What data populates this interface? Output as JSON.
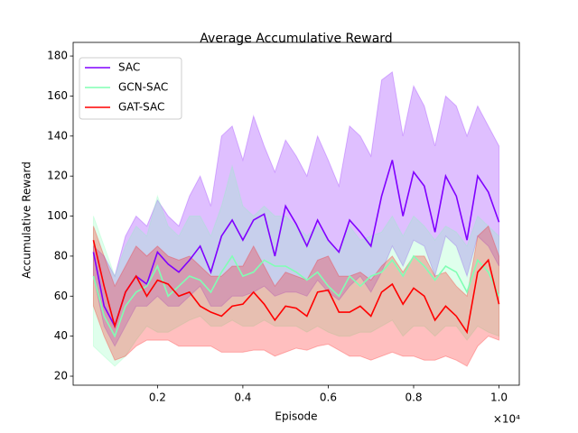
{
  "chart_data": {
    "type": "line",
    "title": "Average Accumulative Reward",
    "x_label": "Episode",
    "y_label": "Accumulative Reward",
    "x_offset": "×10⁴",
    "x": [
      0.05,
      0.075,
      0.1,
      0.125,
      0.15,
      0.175,
      0.2,
      0.225,
      0.25,
      0.275,
      0.3,
      0.325,
      0.35,
      0.375,
      0.4,
      0.425,
      0.45,
      0.475,
      0.5,
      0.525,
      0.55,
      0.575,
      0.6,
      0.625,
      0.65,
      0.675,
      0.7,
      0.725,
      0.75,
      0.775,
      0.8,
      0.825,
      0.85,
      0.875,
      0.9,
      0.925,
      0.95,
      0.975,
      1.0
    ],
    "series": [
      {
        "name": "SAC",
        "color": "#8000ff",
        "values": [
          82,
          55,
          45,
          62,
          70,
          66,
          82,
          76,
          72,
          78,
          85,
          72,
          90,
          98,
          88,
          98,
          101,
          80,
          105,
          96,
          85,
          98,
          88,
          82,
          98,
          92,
          85,
          110,
          128,
          100,
          122,
          115,
          92,
          120,
          110,
          88,
          120,
          112,
          97
        ],
        "upper": [
          85,
          80,
          70,
          90,
          100,
          95,
          108,
          100,
          95,
          110,
          120,
          105,
          140,
          145,
          128,
          150,
          135,
          122,
          138,
          130,
          120,
          140,
          128,
          115,
          145,
          140,
          130,
          168,
          172,
          140,
          165,
          155,
          135,
          160,
          155,
          140,
          155,
          145,
          135
        ],
        "lower": [
          70,
          45,
          35,
          45,
          55,
          55,
          60,
          55,
          55,
          60,
          65,
          55,
          55,
          60,
          60,
          62,
          65,
          60,
          62,
          62,
          60,
          68,
          62,
          58,
          65,
          70,
          62,
          72,
          85,
          75,
          88,
          85,
          70,
          90,
          85,
          70,
          90,
          85,
          75
        ]
      },
      {
        "name": "GCN-SAC",
        "color": "#80ffb4",
        "values": [
          70,
          50,
          40,
          55,
          62,
          65,
          75,
          60,
          65,
          70,
          68,
          62,
          72,
          80,
          70,
          72,
          78,
          75,
          75,
          72,
          68,
          72,
          65,
          60,
          70,
          65,
          70,
          72,
          78,
          70,
          80,
          75,
          68,
          75,
          72,
          62,
          78,
          72,
          60
        ],
        "upper": [
          100,
          85,
          70,
          85,
          95,
          90,
          110,
          95,
          90,
          100,
          100,
          90,
          105,
          125,
          105,
          100,
          105,
          100,
          100,
          95,
          90,
          95,
          88,
          82,
          95,
          88,
          90,
          92,
          100,
          90,
          100,
          95,
          88,
          95,
          92,
          85,
          100,
          95,
          90
        ],
        "lower": [
          35,
          30,
          25,
          30,
          38,
          45,
          42,
          42,
          45,
          48,
          50,
          45,
          45,
          48,
          45,
          45,
          48,
          45,
          45,
          45,
          42,
          45,
          42,
          40,
          40,
          42,
          42,
          45,
          48,
          40,
          45,
          45,
          40,
          45,
          45,
          38,
          45,
          42,
          40
        ]
      },
      {
        "name": "GAT-SAC",
        "color": "#ff0000",
        "values": [
          88,
          65,
          45,
          62,
          70,
          60,
          68,
          66,
          60,
          62,
          55,
          52,
          50,
          55,
          56,
          62,
          56,
          48,
          55,
          54,
          50,
          62,
          63,
          52,
          52,
          55,
          50,
          62,
          66,
          56,
          64,
          60,
          48,
          55,
          50,
          42,
          72,
          78,
          56
        ],
        "upper": [
          95,
          80,
          65,
          75,
          85,
          80,
          85,
          80,
          78,
          80,
          75,
          70,
          70,
          75,
          75,
          85,
          75,
          65,
          72,
          70,
          68,
          78,
          80,
          70,
          70,
          72,
          68,
          75,
          80,
          72,
          80,
          80,
          70,
          72,
          65,
          60,
          90,
          95,
          80
        ],
        "lower": [
          55,
          40,
          28,
          30,
          35,
          38,
          38,
          38,
          35,
          35,
          35,
          35,
          32,
          32,
          32,
          33,
          33,
          30,
          32,
          34,
          33,
          35,
          36,
          33,
          30,
          30,
          28,
          30,
          32,
          30,
          30,
          28,
          28,
          30,
          28,
          25,
          35,
          40,
          38
        ]
      }
    ],
    "xlim": [
      0.0025,
      1.0475
    ],
    "ylim": [
      15.5,
      186.8
    ],
    "xticks": [
      0.2,
      0.4,
      0.6,
      0.8,
      {
        "value": 1,
        "label": "1.0"
      }
    ],
    "yticks": [
      20,
      40,
      60,
      80,
      100,
      120,
      140,
      160,
      180
    ],
    "band_opacity": 0.25,
    "legend": "upper left"
  }
}
